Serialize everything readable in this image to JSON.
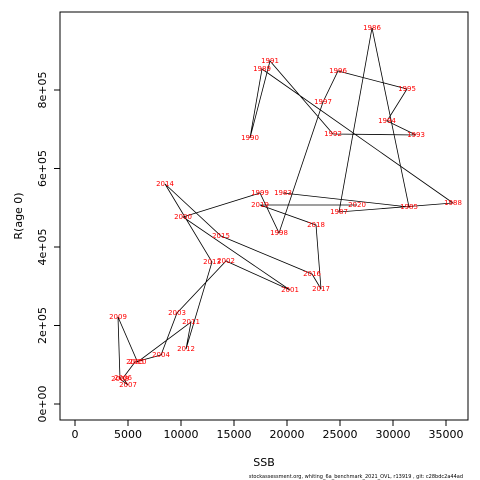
{
  "chart_data": {
    "type": "line",
    "xlabel": "SSB",
    "ylabel": "R(age 0)",
    "footer": "stockassessment.org,  whiting_6a_benchmark_2021_OVL, r13919 ,  git: c28bdc2a44ad",
    "xlim": [
      -1415,
      37075
    ],
    "ylim": [
      -40760,
      998700
    ],
    "xticks": [
      0,
      5000,
      10000,
      15000,
      20000,
      25000,
      30000,
      35000
    ],
    "yticks": [
      {
        "value": 0,
        "label": "0e+00"
      },
      {
        "value": 200000,
        "label": "2e+05"
      },
      {
        "value": 400000,
        "label": "4e+05"
      },
      {
        "value": 600000,
        "label": "6e+05"
      },
      {
        "value": 800000,
        "label": "8e+05"
      }
    ],
    "line_color": "#000000",
    "label_color": "#ff0000",
    "labels": [
      "1983",
      "1985",
      "1986",
      "1987",
      "1988",
      "1989",
      "1990",
      "1991",
      "1992",
      "1993",
      "1994",
      "1995",
      "1996",
      "1997",
      "1998",
      "1999",
      "2000",
      "2001",
      "2002",
      "2003",
      "2004",
      "2005",
      "2006",
      "2007",
      "2008",
      "2009",
      "2010",
      "2011",
      "2012",
      "2013",
      "2014",
      "2015",
      "2016",
      "2017",
      "2018",
      "2019",
      "2020"
    ],
    "x": [
      19623,
      31509,
      28019,
      24906,
      35660,
      17642,
      16509,
      18396,
      24340,
      32170,
      29434,
      31321,
      24811,
      23396,
      19245,
      17453,
      10189,
      20283,
      14245,
      9623,
      8113,
      5660,
      4528,
      5000,
      4245,
      4057,
      5900,
      10943,
      10472,
      12925,
      8491,
      13774,
      22358,
      23208,
      22736,
      17453,
      26604
    ],
    "y": [
      537600,
      501900,
      958000,
      489200,
      512100,
      853500,
      677700,
      873900,
      687900,
      685400,
      721000,
      802500,
      848400,
      769400,
      435700,
      537600,
      476400,
      290400,
      364300,
      231800,
      124800,
      107000,
      66200,
      48400,
      63700,
      221700,
      107000,
      208900,
      140100,
      361800,
      560500,
      428000,
      331200,
      293000,
      456100,
      507000,
      507000
    ]
  }
}
